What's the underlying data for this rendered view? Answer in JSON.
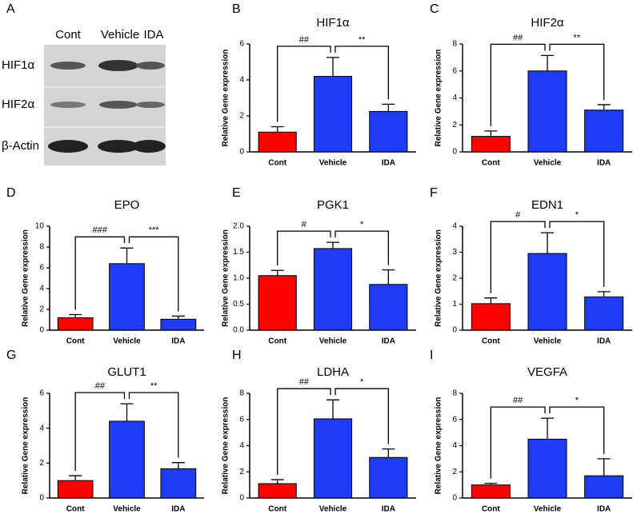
{
  "blot": {
    "panel": "A",
    "lanes": [
      "Cont",
      "Vehicle",
      "IDA"
    ],
    "rows": [
      "HIF1α",
      "HIF2α",
      "β-Actin"
    ]
  },
  "chart_data": [
    {
      "type": "bar",
      "panel": "B",
      "title": "HIF1α",
      "ylabel": "Relative Gene expression",
      "categories": [
        "Cont",
        "Vehicle",
        "IDA"
      ],
      "values": [
        1.1,
        4.2,
        2.25
      ],
      "errors": [
        0.3,
        1.05,
        0.4
      ],
      "colors": [
        "#ff0000",
        "#1f3cf5",
        "#1f3cf5"
      ],
      "ylim": [
        0,
        6
      ],
      "yticks": [
        0,
        2,
        4,
        6
      ],
      "annotations": [
        "##",
        "**"
      ]
    },
    {
      "type": "bar",
      "panel": "C",
      "title": "HIF2α",
      "ylabel": "Relative Gene expression",
      "categories": [
        "Cont",
        "Vehicle",
        "IDA"
      ],
      "values": [
        1.15,
        6.0,
        3.1
      ],
      "errors": [
        0.4,
        1.15,
        0.4
      ],
      "colors": [
        "#ff0000",
        "#1f3cf5",
        "#1f3cf5"
      ],
      "ylim": [
        0,
        8
      ],
      "yticks": [
        0,
        2,
        4,
        6,
        8
      ],
      "annotations": [
        "##",
        "**"
      ]
    },
    {
      "type": "bar",
      "panel": "D",
      "title": "EPO",
      "ylabel": "Relative Gene expression",
      "categories": [
        "Cont",
        "Vehicle",
        "IDA"
      ],
      "values": [
        1.2,
        6.4,
        1.05
      ],
      "errors": [
        0.3,
        1.5,
        0.3
      ],
      "colors": [
        "#ff0000",
        "#1f3cf5",
        "#1f3cf5"
      ],
      "ylim": [
        0,
        10
      ],
      "yticks": [
        0,
        2,
        4,
        6,
        8,
        10
      ],
      "annotations": [
        "###",
        "***"
      ]
    },
    {
      "type": "bar",
      "panel": "E",
      "title": "PGK1",
      "ylabel": "Relative Gene expression",
      "categories": [
        "Cont",
        "Vehicle",
        "IDA"
      ],
      "values": [
        1.05,
        1.57,
        0.88
      ],
      "errors": [
        0.1,
        0.12,
        0.28
      ],
      "colors": [
        "#ff0000",
        "#1f3cf5",
        "#1f3cf5"
      ],
      "ylim": [
        0,
        2
      ],
      "yticks": [
        {
          "value": 0,
          "label": "0.0"
        },
        0.5,
        {
          "value": 1,
          "label": "1.0"
        },
        1.5,
        {
          "value": 2,
          "label": "2.0"
        }
      ],
      "annotations": [
        "#",
        "*"
      ]
    },
    {
      "type": "bar",
      "panel": "F",
      "title": "EDN1",
      "ylabel": "Relative Gene expression",
      "categories": [
        "Cont",
        "Vehicle",
        "IDA"
      ],
      "values": [
        1.02,
        2.95,
        1.28
      ],
      "errors": [
        0.22,
        0.8,
        0.2
      ],
      "colors": [
        "#ff0000",
        "#1f3cf5",
        "#1f3cf5"
      ],
      "ylim": [
        0,
        4
      ],
      "yticks": [
        0,
        1,
        2,
        3,
        4
      ],
      "annotations": [
        "#",
        "*"
      ]
    },
    {
      "type": "bar",
      "panel": "G",
      "title": "GLUT1",
      "ylabel": "Relative Gene expression",
      "categories": [
        "Cont",
        "Vehicle",
        "IDA"
      ],
      "values": [
        1.0,
        4.4,
        1.68
      ],
      "errors": [
        0.28,
        1.0,
        0.35
      ],
      "colors": [
        "#ff0000",
        "#1f3cf5",
        "#1f3cf5"
      ],
      "ylim": [
        0,
        6
      ],
      "yticks": [
        0,
        2,
        4,
        6
      ],
      "annotations": [
        "##",
        "**"
      ]
    },
    {
      "type": "bar",
      "panel": "H",
      "title": "LDHA",
      "ylabel": "Relative Gene expression",
      "categories": [
        "Cont",
        "Vehicle",
        "IDA"
      ],
      "values": [
        1.1,
        6.05,
        3.1
      ],
      "errors": [
        0.3,
        1.45,
        0.65
      ],
      "colors": [
        "#ff0000",
        "#1f3cf5",
        "#1f3cf5"
      ],
      "ylim": [
        0,
        8
      ],
      "yticks": [
        0,
        2,
        4,
        6,
        8
      ],
      "annotations": [
        "##",
        "*"
      ]
    },
    {
      "type": "bar",
      "panel": "I",
      "title": "VEGFA",
      "ylabel": "Relative Gene expression",
      "categories": [
        "Cont",
        "Vehicle",
        "IDA"
      ],
      "values": [
        1.0,
        4.5,
        1.7
      ],
      "errors": [
        0.12,
        1.6,
        1.3
      ],
      "colors": [
        "#ff0000",
        "#1f3cf5",
        "#1f3cf5"
      ],
      "ylim": [
        0,
        8
      ],
      "yticks": [
        0,
        2,
        4,
        6,
        8
      ],
      "annotations": [
        "##",
        "*"
      ]
    }
  ]
}
